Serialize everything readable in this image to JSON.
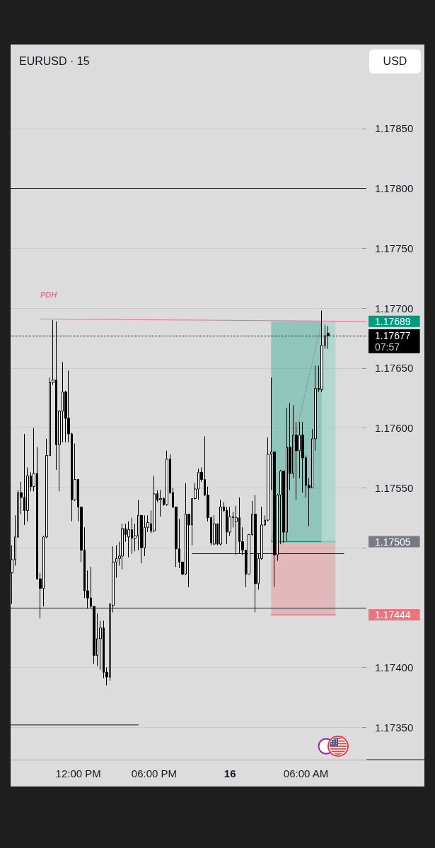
{
  "chart_data": {
    "type": "candlestick",
    "title": "EURUSD · 15",
    "ylabel": "USD",
    "color": "#000000",
    "x": [
      "--12-15T06:45",
      "--12-15T07:00",
      "--12-15T07:15",
      "--12-15T07:30",
      "--12-15T07:45",
      "--12-15T08:00",
      "--12-15T08:15",
      "--12-15T08:30",
      "--12-15T08:45",
      "--12-15T09:00",
      "--12-15T09:15",
      "--12-15T09:30",
      "--12-15T09:45",
      "--12-15T10:00",
      "--12-15T10:15",
      "--12-15T10:30",
      "--12-15T10:45",
      "--12-15T11:00",
      "--12-15T11:15",
      "--12-15T11:30",
      "--12-15T11:45",
      "--12-15T12:00",
      "--12-15T12:15",
      "--12-15T12:30",
      "--12-15T12:45",
      "--12-15T13:00",
      "--12-15T13:15",
      "--12-15T13:30",
      "--12-15T13:45",
      "--12-15T14:00",
      "--12-15T14:15",
      "--12-15T14:30",
      "--12-15T14:45",
      "--12-15T15:00",
      "--12-15T15:15",
      "--12-15T15:30",
      "--12-15T15:45",
      "--12-15T16:00",
      "--12-15T16:15",
      "--12-15T16:30",
      "--12-15T16:45",
      "--12-15T17:00",
      "--12-15T17:15",
      "--12-15T17:30",
      "--12-15T17:45",
      "--12-15T18:00",
      "--12-15T18:15",
      "--12-15T18:30",
      "--12-15T18:45",
      "--12-15T19:00",
      "--12-15T19:15",
      "--12-15T19:30",
      "--12-15T19:45",
      "--12-15T20:00",
      "--12-15T20:15",
      "--12-15T20:30",
      "--12-15T20:45",
      "--12-15T21:00",
      "--12-15T21:15",
      "--12-15T21:30",
      "--12-15T21:45",
      "--12-15T22:00",
      "--12-15T22:15",
      "--12-15T22:30",
      "--12-15T22:45",
      "--12-15T23:00",
      "--12-15T23:15",
      "--12-15T23:30",
      "--12-15T23:45",
      "--12-16T00:00",
      "--12-16T00:15",
      "--12-16T00:30",
      "--12-16T00:45",
      "--12-16T01:00",
      "--12-16T01:15",
      "--12-16T01:30",
      "--12-16T01:45",
      "--12-16T02:00",
      "--12-16T02:15",
      "--12-16T02:30",
      "--12-16T02:45",
      "--12-16T03:00",
      "--12-16T03:15",
      "--12-16T03:30",
      "--12-16T03:45",
      "--12-16T04:00",
      "--12-16T04:15",
      "--12-16T04:30",
      "--12-16T04:45",
      "--12-16T05:00",
      "--12-16T05:15",
      "--12-16T05:30",
      "--12-16T05:45",
      "--12-16T06:00",
      "--12-16T06:15",
      "--12-16T06:30",
      "--12-16T06:45",
      "--12-16T07:00",
      "--12-16T07:15",
      "--12-16T07:30",
      "--12-16T07:45"
    ],
    "ohlc": [
      [
        1.17479,
        1.17502,
        1.17453,
        1.1749
      ],
      [
        1.1749,
        1.17527,
        1.17485,
        1.17509
      ],
      [
        1.17509,
        1.17548,
        1.17508,
        1.17546
      ],
      [
        1.17546,
        1.17555,
        1.17528,
        1.17542
      ],
      [
        1.17542,
        1.17595,
        1.17519,
        1.17531
      ],
      [
        1.17531,
        1.17567,
        1.17522,
        1.1756
      ],
      [
        1.1756,
        1.17563,
        1.17547,
        1.17551
      ],
      [
        1.17551,
        1.176,
        1.17547,
        1.17562
      ],
      [
        1.17562,
        1.17584,
        1.17473,
        1.17474
      ],
      [
        1.17474,
        1.17479,
        1.17441,
        1.17466
      ],
      [
        1.17466,
        1.1751,
        1.17451,
        1.17509
      ],
      [
        1.17509,
        1.17591,
        1.17508,
        1.17577
      ],
      [
        1.17577,
        1.17642,
        1.17577,
        1.17638
      ],
      [
        1.17638,
        1.1769,
        1.17636,
        1.1764
      ],
      [
        1.1764,
        1.17689,
        1.17565,
        1.17586
      ],
      [
        1.17586,
        1.17615,
        1.17547,
        1.17614
      ],
      [
        1.17614,
        1.17655,
        1.17588,
        1.1763
      ],
      [
        1.1763,
        1.17631,
        1.17588,
        1.17608
      ],
      [
        1.17608,
        1.17648,
        1.17588,
        1.17595
      ],
      [
        1.17595,
        1.17596,
        1.17522,
        1.1754
      ],
      [
        1.1754,
        1.17587,
        1.17539,
        1.17557
      ],
      [
        1.17557,
        1.17557,
        1.17522,
        1.17534
      ],
      [
        1.17534,
        1.17534,
        1.17488,
        1.17498
      ],
      [
        1.17498,
        1.17517,
        1.17458,
        1.17464
      ],
      [
        1.17464,
        1.17481,
        1.17449,
        1.17458
      ],
      [
        1.17458,
        1.17484,
        1.1745,
        1.17451
      ],
      [
        1.17451,
        1.17451,
        1.17403,
        1.1741
      ],
      [
        1.1741,
        1.17445,
        1.17401,
        1.17424
      ],
      [
        1.17424,
        1.17439,
        1.17398,
        1.17433
      ],
      [
        1.17433,
        1.17439,
        1.17391,
        1.17396
      ],
      [
        1.17396,
        1.174,
        1.17385,
        1.17392
      ],
      [
        1.17392,
        1.17453,
        1.17389,
        1.17453
      ],
      [
        1.17452,
        1.17501,
        1.17446,
        1.17488
      ],
      [
        1.17488,
        1.17502,
        1.17475,
        1.17491
      ],
      [
        1.17491,
        1.17505,
        1.17485,
        1.17493
      ],
      [
        1.17493,
        1.1752,
        1.17482,
        1.17516
      ],
      [
        1.17516,
        1.1752,
        1.17505,
        1.17511
      ],
      [
        1.17509,
        1.17522,
        1.17492,
        1.17515
      ],
      [
        1.17515,
        1.17525,
        1.17495,
        1.17508
      ],
      [
        1.17508,
        1.1752,
        1.17497,
        1.1751
      ],
      [
        1.1751,
        1.1754,
        1.17498,
        1.17527
      ],
      [
        1.17527,
        1.17527,
        1.17487,
        1.175
      ],
      [
        1.175,
        1.17527,
        1.17493,
        1.17517
      ],
      [
        1.17517,
        1.17527,
        1.17513,
        1.17521
      ],
      [
        1.1752,
        1.17531,
        1.17512,
        1.17514
      ],
      [
        1.17514,
        1.1756,
        1.17513,
        1.17545
      ],
      [
        1.17545,
        1.17548,
        1.17538,
        1.1754
      ],
      [
        1.1754,
        1.17548,
        1.17526,
        1.17541
      ],
      [
        1.17541,
        1.17542,
        1.17535,
        1.17536
      ],
      [
        1.17536,
        1.17581,
        1.17535,
        1.17574
      ],
      [
        1.17574,
        1.17578,
        1.17545,
        1.17546
      ],
      [
        1.17546,
        1.1755,
        1.17533,
        1.17534
      ],
      [
        1.17534,
        1.17534,
        1.17484,
        1.17499
      ],
      [
        1.17499,
        1.17524,
        1.17483,
        1.17488
      ],
      [
        1.17488,
        1.17488,
        1.17477,
        1.17478
      ],
      [
        1.17478,
        1.17554,
        1.17477,
        1.17528
      ],
      [
        1.17528,
        1.17528,
        1.17467,
        1.17519
      ],
      [
        1.17519,
        1.17541,
        1.17502,
        1.17541
      ],
      [
        1.17541,
        1.17554,
        1.1754,
        1.17549
      ],
      [
        1.17549,
        1.17566,
        1.1754,
        1.17563
      ],
      [
        1.17563,
        1.17567,
        1.17555,
        1.17557
      ],
      [
        1.17557,
        1.17593,
        1.17543,
        1.17544
      ],
      [
        1.17544,
        1.17551,
        1.17522,
        1.17525
      ],
      [
        1.17525,
        1.17526,
        1.17502,
        1.17504
      ],
      [
        1.17503,
        1.17527,
        1.17502,
        1.1752
      ],
      [
        1.1752,
        1.1752,
        1.17502,
        1.17503
      ],
      [
        1.17503,
        1.1754,
        1.17502,
        1.17534
      ],
      [
        1.17534,
        1.17538,
        1.1753,
        1.17531
      ],
      [
        1.17531,
        1.17534,
        1.17503,
        1.17513
      ],
      [
        1.17513,
        1.17534,
        1.1751,
        1.17526
      ],
      [
        1.17525,
        1.1753,
        1.17517,
        1.17526
      ],
      [
        1.17522,
        1.17535,
        1.17494,
        1.17525
      ],
      [
        1.17525,
        1.17542,
        1.17495,
        1.17505
      ],
      [
        1.17505,
        1.17517,
        1.17494,
        1.17498
      ],
      [
        1.17498,
        1.17498,
        1.17467,
        1.17478
      ],
      [
        1.17478,
        1.17511,
        1.17478,
        1.17511
      ],
      [
        1.17511,
        1.17539,
        1.1751,
        1.17528
      ],
      [
        1.17528,
        1.17544,
        1.17446,
        1.1747
      ],
      [
        1.1747,
        1.17495,
        1.17465,
        1.17491
      ],
      [
        1.17491,
        1.17534,
        1.1749,
        1.17519
      ],
      [
        1.17519,
        1.17527,
        1.17518,
        1.17523
      ],
      [
        1.17523,
        1.17592,
        1.17522,
        1.17578
      ],
      [
        1.17578,
        1.17642,
        1.17548,
        1.1758
      ],
      [
        1.1758,
        1.1758,
        1.17467,
        1.17494
      ],
      [
        1.17494,
        1.17545,
        1.17489,
        1.17544
      ],
      [
        1.17544,
        1.17565,
        1.17503,
        1.17564
      ],
      [
        1.17564,
        1.17564,
        1.17504,
        1.17513
      ],
      [
        1.17513,
        1.17617,
        1.17505,
        1.17584
      ],
      [
        1.17584,
        1.17621,
        1.17548,
        1.17562
      ],
      [
        1.17562,
        1.17619,
        1.17558,
        1.17594
      ],
      [
        1.17594,
        1.17605,
        1.1754,
        1.17581
      ],
      [
        1.17581,
        1.17605,
        1.17558,
        1.17594
      ],
      [
        1.17594,
        1.17605,
        1.17546,
        1.17575
      ],
      [
        1.17575,
        1.17577,
        1.17542,
        1.17552
      ],
      [
        1.17552,
        1.17558,
        1.17518,
        1.1755
      ],
      [
        1.1755,
        1.17599,
        1.1755,
        1.17591
      ],
      [
        1.17591,
        1.17652,
        1.17581,
        1.17633
      ],
      [
        1.17633,
        1.17652,
        1.1763,
        1.17632
      ],
      [
        1.17632,
        1.17698,
        1.1763,
        1.17669
      ],
      [
        1.17669,
        1.17686,
        1.17666,
        1.17677
      ],
      [
        1.17679,
        1.17685,
        1.17666,
        1.17677
      ]
    ],
    "xlim": [
      "--12-15T06:39",
      "--12-16T10:47"
    ],
    "xticks": [
      {
        "value": "--12-15T12:00",
        "label": "12:00 PM"
      },
      {
        "value": "--12-15T18:00",
        "label": "06:00 PM"
      },
      {
        "value": "--12-16T00:00",
        "label": "16"
      },
      {
        "value": "--12-16T06:00",
        "label": "06:00 AM"
      }
    ],
    "ylim": [
      1.17323,
      1.17919
    ],
    "yticks": [
      {
        "value": 1.1735,
        "label": "1.17350"
      },
      {
        "value": 1.174,
        "label": "1.17400"
      },
      1.17444,
      {
        "value": 1.1745,
        "label": null
      },
      {
        "value": 1.175,
        "label": null
      },
      1.17505,
      {
        "value": 1.1755,
        "label": "1.17550"
      },
      {
        "value": 1.176,
        "label": "1.17600"
      },
      {
        "value": 1.1765,
        "label": "1.17650"
      },
      1.17689,
      {
        "value": 1.177,
        "label": "1.17700"
      },
      {
        "value": 1.1775,
        "label": "1.17750"
      },
      {
        "value": 1.178,
        "label": "1.17800"
      },
      {
        "value": 1.1785,
        "label": "1.17850"
      }
    ],
    "grid": "y",
    "series": [
      {
        "type": "line",
        "name": "PDH",
        "color": "#e8708e",
        "x": [
          "--12-15T09:00",
          "--12-16T10:47"
        ],
        "values": [
          1.17691,
          1.17689
        ]
      },
      {
        "type": "line",
        "color": "#131722",
        "x": [
          "--12-15T06:39",
          "--12-15T16:45"
        ],
        "values": [
          1.17352,
          1.17352
        ]
      },
      {
        "type": "line",
        "color": "#131722",
        "x": [
          "--12-15T21:00",
          "--12-16T09:00"
        ],
        "values": [
          1.17495,
          1.17495
        ]
      },
      {
        "type": "line",
        "color": "#009a7e",
        "x": [
          "--12-16T03:15",
          "--12-16T07:15"
        ],
        "values": [
          1.17505,
          1.17505
        ],
        "lower": [
          1.17505,
          1.17505
        ],
        "upper": [
          1.17689,
          1.17689
        ]
      },
      {
        "type": "line",
        "color": "#61ceb4",
        "x": [
          "--12-16T07:15",
          "--12-16T08:20"
        ],
        "values": [
          1.17505,
          1.17505
        ],
        "lower": [
          1.17505,
          1.17505
        ],
        "upper": [
          1.17689,
          1.17689
        ]
      },
      {
        "type": "line",
        "color": "#ea7581",
        "x": [
          "--12-16T03:15",
          "--12-16T08:20"
        ],
        "values": [
          1.17444,
          1.17444
        ],
        "lower": [
          1.17444,
          1.17444
        ],
        "upper": [
          1.17505,
          1.17505
        ]
      },
      {
        "type": "line",
        "color": "#8a9895",
        "line_style": "dashed",
        "x": [
          "--12-16T03:15",
          "--12-16T07:15"
        ],
        "values": [
          1.17505,
          1.17689
        ]
      }
    ],
    "ref_lines": [
      {
        "axis": "y",
        "value": 1.178,
        "color": "#131722"
      },
      {
        "axis": "y",
        "value": 1.17677,
        "label": "1.17677\n07:57",
        "color": "#000000",
        "line_style": "dotted"
      },
      {
        "axis": "y",
        "value": 1.1745,
        "color": "#131722"
      }
    ]
  }
}
